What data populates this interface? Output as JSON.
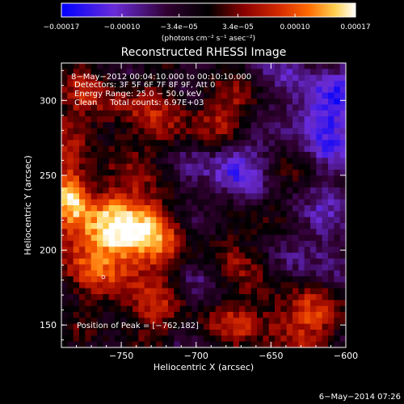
{
  "chart_data": {
    "type": "heatmap",
    "title": "Reconstructed RHESSI Image",
    "xlabel": "Heliocentric X (arcsec)",
    "ylabel": "Heliocentric Y (arcsec)",
    "xlim": [
      -790,
      -600
    ],
    "ylim": [
      135,
      325
    ],
    "x_ticks": [
      -750,
      -700,
      -650,
      -600
    ],
    "x_tick_labels": [
      "−750",
      "−700",
      "−650",
      "−600"
    ],
    "y_ticks": [
      150,
      200,
      250,
      300
    ],
    "y_tick_labels": [
      "150",
      "200",
      "250",
      "300"
    ],
    "colorbar": {
      "min": -0.00017,
      "max": 0.00017,
      "ticks": [
        -0.00017,
        -0.0001,
        -3.4e-05,
        3.4e-05,
        0.0001,
        0.00017
      ],
      "tick_labels": [
        "−0.00017",
        "−0.00010",
        "−3.4e−05",
        "3.4e−05",
        "0.00010",
        "0.00017"
      ],
      "unit_label": "(photons cm⁻² s⁻¹ asec⁻²)",
      "colors": [
        "#0000ff",
        "#6a2cd8",
        "#300030",
        "#000000",
        "#8a0000",
        "#d42a00",
        "#ff6a00",
        "#ffd050",
        "#ffffff"
      ]
    },
    "annotations": [
      "8−May−2012 00:04:10.000 to 00:10:10.000",
      "Detectors: 3F 5F 6F 7F 8F 9F, Att 0",
      "Energy Range: 25.0 − 50.0 keV",
      "Clean     Total counts: 6.97E+03"
    ],
    "peak_label": "Position of Peak = [−762,182]",
    "peak": [
      -762,
      182
    ]
  },
  "footer": {
    "timestamp": "6−May−2014 07:26"
  }
}
